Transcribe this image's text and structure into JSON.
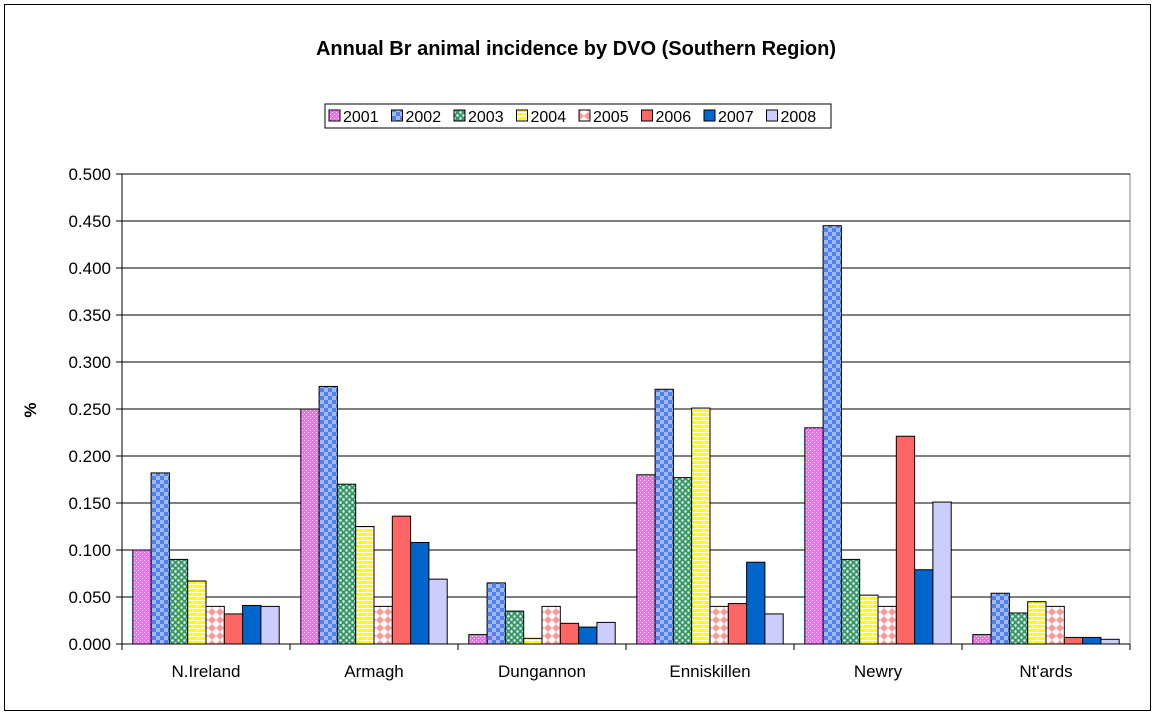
{
  "chart_data": {
    "type": "bar",
    "title": "Annual Br animal incidence by DVO (Southern Region)",
    "xlabel": "",
    "ylabel": "%",
    "ylim": [
      0,
      0.5
    ],
    "yticks": [
      "0.000",
      "0.050",
      "0.100",
      "0.150",
      "0.200",
      "0.250",
      "0.300",
      "0.350",
      "0.400",
      "0.450",
      "0.500"
    ],
    "grid": true,
    "legend_position": "top",
    "categories": [
      "N.Ireland",
      "Armagh",
      "Dungannon",
      "Enniskillen",
      "Newry",
      "Nt'ards"
    ],
    "series": [
      {
        "name": "2001",
        "color": "#ff66ff",
        "pattern": "dots-fine",
        "values": [
          0.1,
          0.25,
          0.01,
          0.18,
          0.23,
          0.01
        ]
      },
      {
        "name": "2002",
        "color": "#4f81f0",
        "pattern": "checker",
        "values": [
          0.182,
          0.274,
          0.065,
          0.271,
          0.445,
          0.054
        ]
      },
      {
        "name": "2003",
        "color": "#339966",
        "pattern": "dots-white",
        "values": [
          0.09,
          0.17,
          0.035,
          0.177,
          0.09,
          0.033
        ]
      },
      {
        "name": "2004",
        "color": "#ffff00",
        "pattern": "bricks",
        "values": [
          0.067,
          0.125,
          0.006,
          0.251,
          0.052,
          0.045
        ]
      },
      {
        "name": "2005",
        "color": "#ff8080",
        "pattern": "diamonds",
        "values": [
          0.04,
          0.04,
          0.04,
          0.04,
          0.04,
          0.04
        ]
      },
      {
        "name": "2006",
        "color": "#ff6666",
        "pattern": "solid",
        "values": [
          0.032,
          0.136,
          0.022,
          0.043,
          0.221,
          0.007
        ]
      },
      {
        "name": "2007",
        "color": "#0066cc",
        "pattern": "solid",
        "values": [
          0.041,
          0.108,
          0.018,
          0.087,
          0.079,
          0.007
        ]
      },
      {
        "name": "2008",
        "color": "#ccccff",
        "pattern": "solid",
        "values": [
          0.04,
          0.069,
          0.023,
          0.032,
          0.151,
          0.005
        ]
      }
    ]
  }
}
